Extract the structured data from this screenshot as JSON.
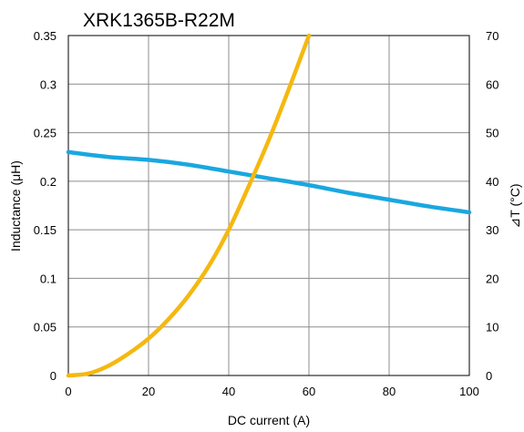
{
  "chart_data": {
    "type": "line",
    "title": "XRK1365B-R22M",
    "xlabel": "DC current (A)",
    "ylabel_left": "Inductance (μH)",
    "ylabel_right": "⊿T (°C)",
    "xlim": [
      0,
      100
    ],
    "ylim_left": [
      0,
      0.35
    ],
    "ylim_right": [
      0,
      70
    ],
    "x_ticks": [
      "0",
      "20",
      "40",
      "60",
      "80",
      "100"
    ],
    "y_left_ticks": [
      "0",
      "0.05",
      "0.1",
      "0.15",
      "0.2",
      "0.25",
      "0.3",
      "0.35"
    ],
    "y_right_ticks": [
      "0",
      "10",
      "20",
      "30",
      "40",
      "50",
      "60",
      "70"
    ],
    "grid": true,
    "series": [
      {
        "axis": "left",
        "color": "#1aa7e0",
        "x": [
          0,
          10,
          20,
          30,
          40,
          50,
          60,
          70,
          80,
          90,
          100
        ],
        "values": [
          0.23,
          0.225,
          0.222,
          0.217,
          0.21,
          0.203,
          0.196,
          0.188,
          0.181,
          0.174,
          0.168
        ]
      },
      {
        "axis": "right",
        "color": "#f5b80f",
        "x": [
          0,
          5,
          10,
          15,
          20,
          25,
          30,
          35,
          40,
          45,
          50,
          55,
          60
        ],
        "values": [
          0,
          0.4,
          2,
          4.5,
          7.6,
          11.6,
          16.5,
          22.5,
          30,
          39,
          48.5,
          59,
          70
        ]
      }
    ]
  }
}
